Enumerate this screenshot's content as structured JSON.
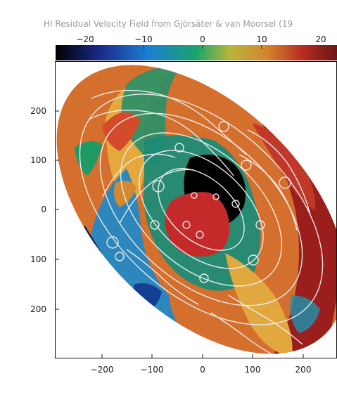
{
  "figure": {
    "title": "HI Residual Velocity Field from Gjörsäter & van Moorsel (19",
    "colorbar": {
      "ticks": [
        "−20",
        "−10",
        "0",
        "10",
        "20"
      ],
      "colors": [
        "#000000",
        "#1b2a8a",
        "#1b7fd1",
        "#19a46c",
        "#b8b63b",
        "#d2862f",
        "#b62b1f",
        "#6a1616"
      ]
    },
    "y_axis": {
      "ticks": [
        "200",
        "100",
        "0",
        "100",
        "200"
      ]
    },
    "x_axis": {
      "ticks": [
        "−200",
        "−100",
        "0",
        "100",
        "200"
      ]
    }
  }
}
